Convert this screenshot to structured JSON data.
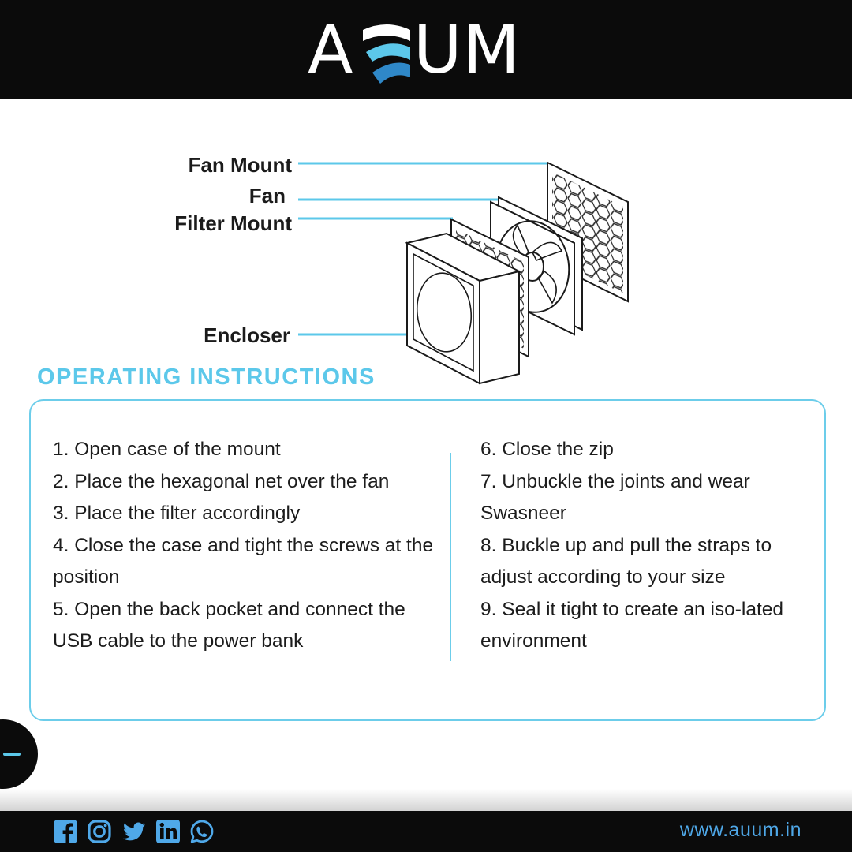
{
  "brand": {
    "logo_part_1": "A",
    "logo_part_2": "UM",
    "accent_color": "#5cc8ea"
  },
  "diagram": {
    "labels": [
      "Fan Mount",
      "Fan",
      "Filter Mount",
      "Encloser"
    ]
  },
  "instructions": {
    "title": "OPERATING INSTRUCTIONS",
    "left_column": [
      "1. Open case of the mount",
      "2. Place the hexagonal net over the fan",
      "3. Place the filter accordingly",
      "4. Close the case and tight the screws at the position",
      "5. Open the back pocket and connect the USB cable to the power bank"
    ],
    "right_column": [
      "6. Close the zip",
      "7. Unbuckle the joints and wear Swasneer",
      "8. Buckle up and pull the straps to adjust according to your size",
      "9. Seal it tight to create an iso-lated environment"
    ]
  },
  "footer": {
    "social_icons": [
      "facebook-icon",
      "instagram-icon",
      "twitter-icon",
      "linkedin-icon",
      "whatsapp-icon"
    ],
    "website": "www.auum.in",
    "icon_color": "#4fa8e8"
  }
}
